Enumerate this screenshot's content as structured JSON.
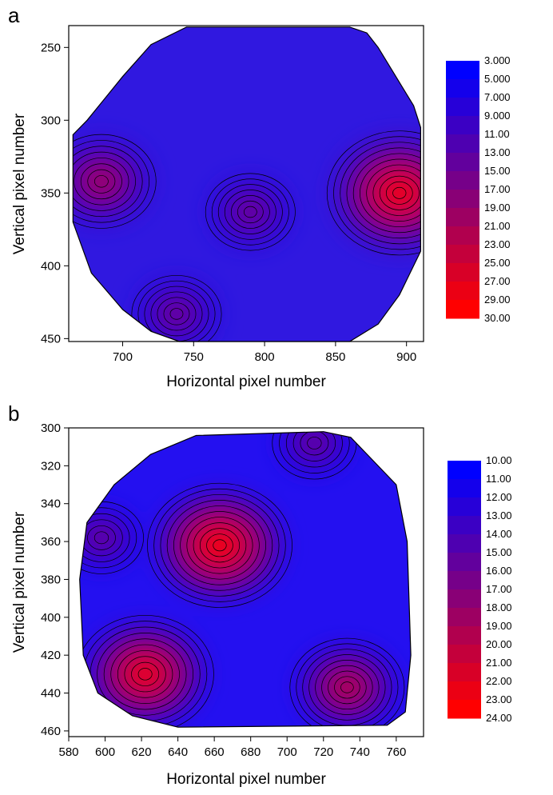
{
  "chart_data": [
    {
      "panel_label": "a",
      "type": "heatmap",
      "subtype": "contour",
      "xlabel": "Horizontal pixel number",
      "ylabel": "Vertical pixel number",
      "xlim": [
        662,
        912
      ],
      "ylim": [
        452,
        235
      ],
      "y_inverted": true,
      "xticks": [
        700,
        750,
        800,
        850,
        900
      ],
      "yticks": [
        250,
        300,
        350,
        400,
        450
      ],
      "grid": false,
      "legend_position": "right",
      "colormap": [
        "#0000FF",
        "#FF0000"
      ],
      "legend_levels": [
        "3.000",
        "5.000",
        "7.000",
        "9.000",
        "11.00",
        "13.00",
        "15.00",
        "17.00",
        "19.00",
        "21.00",
        "23.00",
        "25.00",
        "27.00",
        "29.00",
        "30.00"
      ],
      "hotspots": [
        {
          "x": 685,
          "y": 342,
          "peak": 21
        },
        {
          "x": 895,
          "y": 350,
          "peak": 30
        },
        {
          "x": 790,
          "y": 363,
          "peak": 16
        },
        {
          "x": 738,
          "y": 433,
          "peak": 16
        }
      ]
    },
    {
      "panel_label": "b",
      "type": "heatmap",
      "subtype": "contour",
      "xlabel": "Horizontal pixel number",
      "ylabel": "Vertical pixel number",
      "xlim": [
        580,
        775
      ],
      "ylim": [
        463,
        300
      ],
      "y_inverted": true,
      "xticks": [
        580,
        600,
        620,
        640,
        660,
        680,
        700,
        720,
        740,
        760
      ],
      "yticks": [
        300,
        320,
        340,
        360,
        380,
        400,
        420,
        440,
        460
      ],
      "grid": false,
      "legend_position": "right",
      "colormap": [
        "#0000FF",
        "#FF0000"
      ],
      "legend_levels": [
        "10.00",
        "11.00",
        "12.00",
        "13.00",
        "14.00",
        "15.00",
        "16.00",
        "17.00",
        "18.00",
        "19.00",
        "20.00",
        "21.00",
        "22.00",
        "23.00",
        "24.00"
      ],
      "hotspots": [
        {
          "x": 663,
          "y": 362,
          "peak": 24
        },
        {
          "x": 622,
          "y": 430,
          "peak": 23
        },
        {
          "x": 733,
          "y": 437,
          "peak": 20
        },
        {
          "x": 598,
          "y": 358,
          "peak": 16
        },
        {
          "x": 715,
          "y": 308,
          "peak": 16
        }
      ]
    }
  ]
}
